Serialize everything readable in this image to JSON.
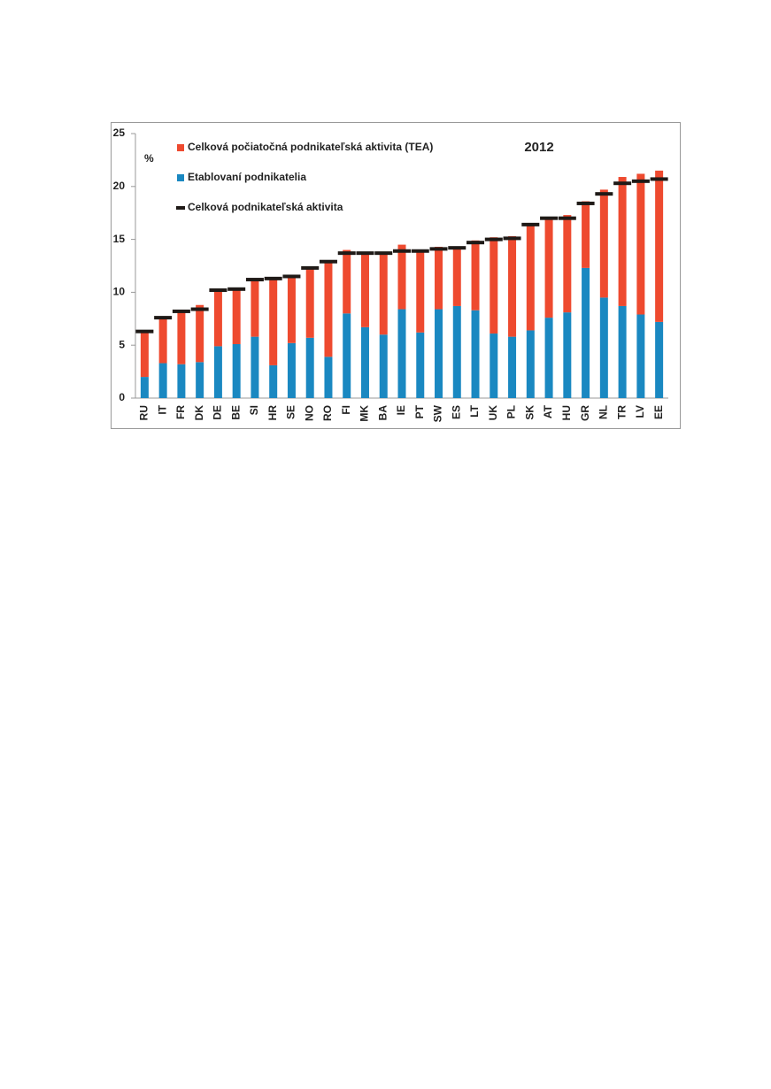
{
  "chart_data": {
    "type": "bar",
    "stacked": true,
    "title": "2012",
    "ylabel": "%",
    "categories": [
      "RU",
      "IT",
      "FR",
      "DK",
      "DE",
      "BE",
      "SI",
      "HR",
      "SE",
      "NO",
      "RO",
      "FI",
      "MK",
      "BA",
      "IE",
      "PT",
      "SW",
      "ES",
      "LT",
      "UK",
      "PL",
      "SK",
      "AT",
      "HU",
      "GR",
      "NL",
      "TR",
      "LV",
      "EE"
    ],
    "series": [
      {
        "name": "Etablovaní podnikatelia",
        "color": "#1a88c1",
        "values": [
          2.0,
          3.3,
          3.2,
          3.4,
          4.9,
          5.1,
          5.8,
          3.1,
          5.2,
          5.7,
          3.9,
          8.0,
          6.7,
          6.0,
          8.4,
          6.2,
          8.4,
          8.7,
          8.3,
          6.1,
          5.8,
          6.4,
          7.6,
          8.1,
          12.3,
          9.5,
          8.7,
          7.9,
          7.2
        ]
      },
      {
        "name": "Celková počiatočná podnikateľská aktivita (TEA)",
        "color": "#ee4a2f",
        "values": [
          4.3,
          4.4,
          5.0,
          5.4,
          5.3,
          5.2,
          5.4,
          8.2,
          6.3,
          6.6,
          9.1,
          6.0,
          6.9,
          7.6,
          6.1,
          7.7,
          5.9,
          5.4,
          6.6,
          9.1,
          9.5,
          10.1,
          9.5,
          9.2,
          6.3,
          10.2,
          12.2,
          13.3,
          14.3
        ]
      },
      {
        "name": "Celková podnikateľská aktivita",
        "type": "marker",
        "color": "#1f1a17",
        "values": [
          6.3,
          7.6,
          8.2,
          8.4,
          10.2,
          10.3,
          11.2,
          11.3,
          11.5,
          12.3,
          12.9,
          13.7,
          13.7,
          13.7,
          13.9,
          13.9,
          14.1,
          14.2,
          14.7,
          15.0,
          15.1,
          16.4,
          17.0,
          17.0,
          18.4,
          19.3,
          20.3,
          20.5,
          20.7
        ]
      }
    ],
    "ylim": [
      0,
      25
    ],
    "yticks": [
      0,
      5,
      10,
      15,
      20,
      25
    ],
    "grid": false
  }
}
